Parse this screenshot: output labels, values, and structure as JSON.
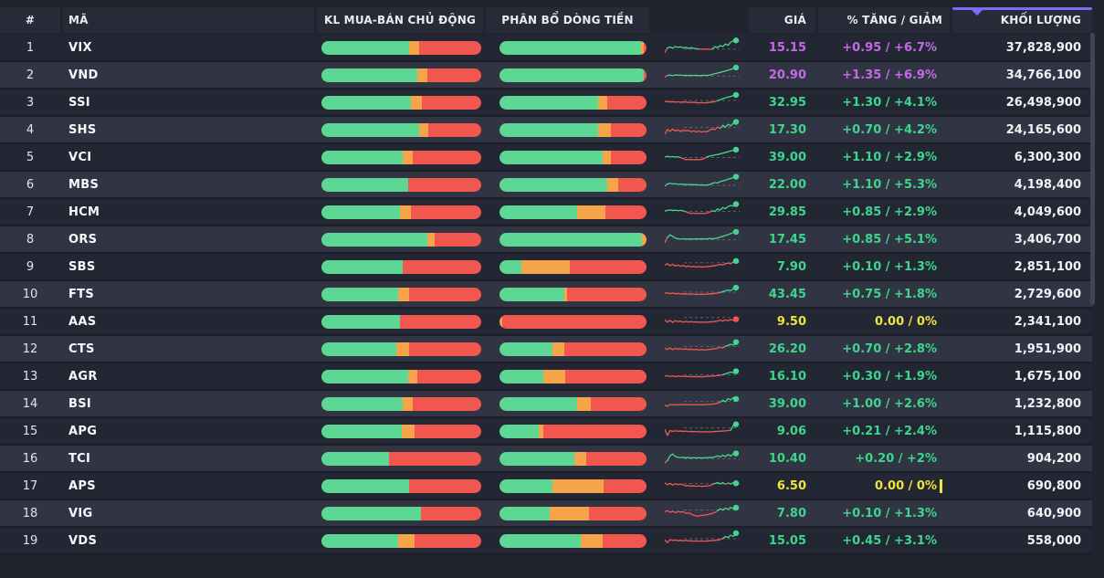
{
  "colors": {
    "bar_green": "#5dd794",
    "bar_orange": "#f5a44a",
    "bar_red": "#f1564f",
    "spark_green": "#45d58f",
    "spark_red": "#f1564f",
    "spark_baseline": "#687082",
    "accent_sort": "#7a6cf5",
    "state": {
      "ceiling": "#c46ae6",
      "up": "#3dd68c",
      "reference": "#efe33d"
    }
  },
  "header": {
    "number": "#",
    "ticker": "MÃ",
    "active_buy_sell": "KL MUA-BÁN CHỦ ĐỘNG",
    "money_flow": "PHÂN BỔ DÒNG TIỀN",
    "price": "GIÁ",
    "change": "% TĂNG / GIẢM",
    "volume": "KHỐI LƯỢNG",
    "sorted_by": "KHỐI LƯỢNG",
    "sort_direction": "desc"
  },
  "rows": [
    {
      "num": "1",
      "ticker": "VIX",
      "buy_sell": {
        "buy": 55,
        "neutral": 6,
        "sell": 39
      },
      "money_flow": {
        "in": 96,
        "neutral": 2,
        "out": 2
      },
      "price": "15.15",
      "change": "+0.95 / +6.7%",
      "state": "ceiling",
      "volume": "37,828,900",
      "caret": false,
      "spark": {
        "baseline": 0.62,
        "dot": "green",
        "values": [
          0.82,
          0.55,
          0.5,
          0.57,
          0.47,
          0.52,
          0.49,
          0.55,
          0.52,
          0.58,
          0.54,
          0.57,
          0.6,
          0.62,
          0.62,
          0.63,
          0.62,
          0.63,
          0.62,
          0.48,
          0.53,
          0.42,
          0.47,
          0.33,
          0.4,
          0.22,
          0.15,
          0.12
        ]
      }
    },
    {
      "num": "2",
      "ticker": "VND",
      "buy_sell": {
        "buy": 60,
        "neutral": 6,
        "sell": 34
      },
      "money_flow": {
        "in": 98,
        "neutral": 0,
        "out": 2
      },
      "price": "20.90",
      "change": "+1.35 / +6.9%",
      "state": "ceiling",
      "volume": "34,766,100",
      "caret": false,
      "spark": {
        "baseline": 0.6,
        "dot": "green",
        "values": [
          0.66,
          0.56,
          0.54,
          0.57,
          0.53,
          0.55,
          0.54,
          0.56,
          0.55,
          0.57,
          0.55,
          0.56,
          0.55,
          0.57,
          0.56,
          0.55,
          0.56,
          0.54,
          0.5,
          0.46,
          0.42,
          0.38,
          0.34,
          0.3,
          0.26,
          0.21,
          0.16,
          0.1
        ]
      }
    },
    {
      "num": "3",
      "ticker": "SSI",
      "buy_sell": {
        "buy": 56,
        "neutral": 7,
        "sell": 37
      },
      "money_flow": {
        "in": 67,
        "neutral": 6,
        "out": 27
      },
      "price": "32.95",
      "change": "+1.30 / +4.1%",
      "state": "up",
      "volume": "26,498,900",
      "caret": false,
      "spark": {
        "baseline": 0.42,
        "dot": "green",
        "values": [
          0.5,
          0.47,
          0.51,
          0.49,
          0.52,
          0.5,
          0.53,
          0.51,
          0.52,
          0.53,
          0.54,
          0.53,
          0.55,
          0.56,
          0.55,
          0.56,
          0.55,
          0.53,
          0.51,
          0.49,
          0.44,
          0.38,
          0.32,
          0.27,
          0.23,
          0.19,
          0.14,
          0.1
        ]
      }
    },
    {
      "num": "4",
      "ticker": "SHS",
      "buy_sell": {
        "buy": 61,
        "neutral": 6,
        "sell": 33
      },
      "money_flow": {
        "in": 67,
        "neutral": 9,
        "out": 24
      },
      "price": "17.30",
      "change": "+0.70 / +4.2%",
      "state": "up",
      "volume": "24,165,600",
      "caret": false,
      "spark": {
        "baseline": 0.4,
        "dot": "green",
        "values": [
          0.78,
          0.52,
          0.62,
          0.5,
          0.6,
          0.54,
          0.63,
          0.56,
          0.6,
          0.57,
          0.64,
          0.6,
          0.65,
          0.62,
          0.66,
          0.64,
          0.65,
          0.55,
          0.48,
          0.53,
          0.38,
          0.45,
          0.28,
          0.38,
          0.22,
          0.3,
          0.16,
          0.08
        ]
      }
    },
    {
      "num": "5",
      "ticker": "VCI",
      "buy_sell": {
        "buy": 51,
        "neutral": 6,
        "sell": 43
      },
      "money_flow": {
        "in": 70,
        "neutral": 6,
        "out": 24
      },
      "price": "39.00",
      "change": "+1.10 / +2.9%",
      "state": "up",
      "volume": "6,300,300",
      "caret": false,
      "spark": {
        "baseline": 0.55,
        "dot": "green",
        "values": [
          0.52,
          0.49,
          0.52,
          0.5,
          0.53,
          0.51,
          0.56,
          0.62,
          0.68,
          0.66,
          0.68,
          0.67,
          0.68,
          0.67,
          0.66,
          0.6,
          0.52,
          0.47,
          0.44,
          0.41,
          0.38,
          0.34,
          0.3,
          0.26,
          0.22,
          0.18,
          0.14,
          0.1
        ]
      }
    },
    {
      "num": "6",
      "ticker": "MBS",
      "buy_sell": {
        "buy": 54,
        "neutral": 0,
        "sell": 46
      },
      "money_flow": {
        "in": 73,
        "neutral": 8,
        "out": 19
      },
      "price": "22.00",
      "change": "+1.10 / +5.3%",
      "state": "up",
      "volume": "4,198,400",
      "caret": false,
      "spark": {
        "baseline": 0.58,
        "dot": "green",
        "values": [
          0.62,
          0.5,
          0.46,
          0.5,
          0.48,
          0.52,
          0.5,
          0.53,
          0.52,
          0.54,
          0.53,
          0.55,
          0.54,
          0.56,
          0.55,
          0.57,
          0.56,
          0.54,
          0.46,
          0.42,
          0.44,
          0.36,
          0.32,
          0.28,
          0.23,
          0.18,
          0.13,
          0.08
        ]
      }
    },
    {
      "num": "7",
      "ticker": "HCM",
      "buy_sell": {
        "buy": 49,
        "neutral": 7,
        "sell": 44
      },
      "money_flow": {
        "in": 53,
        "neutral": 19,
        "out": 28
      },
      "price": "29.85",
      "change": "+0.85 / +2.9%",
      "state": "up",
      "volume": "4,049,600",
      "caret": false,
      "spark": {
        "baseline": 0.5,
        "dot": "green",
        "values": [
          0.48,
          0.44,
          0.42,
          0.45,
          0.43,
          0.46,
          0.44,
          0.47,
          0.52,
          0.58,
          0.62,
          0.6,
          0.62,
          0.61,
          0.62,
          0.61,
          0.6,
          0.54,
          0.46,
          0.5,
          0.36,
          0.42,
          0.28,
          0.34,
          0.22,
          0.16,
          0.2,
          0.08
        ]
      }
    },
    {
      "num": "8",
      "ticker": "ORS",
      "buy_sell": {
        "buy": 66,
        "neutral": 5,
        "sell": 29
      },
      "money_flow": {
        "in": 97,
        "neutral": 3,
        "out": 0
      },
      "price": "17.45",
      "change": "+0.85 / +5.1%",
      "state": "up",
      "volume": "3,406,700",
      "caret": false,
      "spark": {
        "baseline": 0.55,
        "dot": "green",
        "values": [
          0.72,
          0.42,
          0.28,
          0.36,
          0.46,
          0.5,
          0.52,
          0.5,
          0.52,
          0.51,
          0.52,
          0.51,
          0.5,
          0.51,
          0.5,
          0.51,
          0.5,
          0.49,
          0.5,
          0.48,
          0.45,
          0.41,
          0.36,
          0.31,
          0.26,
          0.2,
          0.14,
          0.1
        ]
      }
    },
    {
      "num": "9",
      "ticker": "SBS",
      "buy_sell": {
        "buy": 51,
        "neutral": 0,
        "sell": 49
      },
      "money_flow": {
        "in": 15,
        "neutral": 33,
        "out": 52
      },
      "price": "7.90",
      "change": "+0.10 / +1.3%",
      "state": "up",
      "volume": "2,851,100",
      "caret": false,
      "spark": {
        "baseline": 0.3,
        "dot": "green",
        "values": [
          0.44,
          0.36,
          0.47,
          0.39,
          0.49,
          0.43,
          0.51,
          0.46,
          0.53,
          0.49,
          0.54,
          0.51,
          0.55,
          0.53,
          0.55,
          0.54,
          0.53,
          0.51,
          0.49,
          0.47,
          0.44,
          0.4,
          0.43,
          0.36,
          0.32,
          0.36,
          0.26,
          0.2
        ]
      }
    },
    {
      "num": "10",
      "ticker": "FTS",
      "buy_sell": {
        "buy": 48,
        "neutral": 7,
        "sell": 45
      },
      "money_flow": {
        "in": 44,
        "neutral": 2,
        "out": 54
      },
      "price": "43.45",
      "change": "+0.75 / +1.8%",
      "state": "up",
      "volume": "2,729,600",
      "caret": false,
      "spark": {
        "baseline": 0.42,
        "dot": "green",
        "values": [
          0.48,
          0.46,
          0.5,
          0.47,
          0.51,
          0.49,
          0.52,
          0.51,
          0.53,
          0.52,
          0.54,
          0.53,
          0.55,
          0.54,
          0.55,
          0.54,
          0.53,
          0.52,
          0.51,
          0.49,
          0.47,
          0.44,
          0.39,
          0.34,
          0.3,
          0.33,
          0.22,
          0.16
        ]
      }
    },
    {
      "num": "11",
      "ticker": "AAS",
      "buy_sell": {
        "buy": 49,
        "neutral": 0,
        "sell": 51
      },
      "money_flow": {
        "in": 0,
        "neutral": 2,
        "out": 98
      },
      "price": "9.50",
      "change": "0.00 / 0%",
      "state": "reference",
      "volume": "2,341,100",
      "caret": false,
      "spark": {
        "baseline": 0.3,
        "dot": "red",
        "values": [
          0.44,
          0.56,
          0.47,
          0.58,
          0.49,
          0.54,
          0.51,
          0.57,
          0.53,
          0.56,
          0.54,
          0.57,
          0.55,
          0.58,
          0.56,
          0.58,
          0.57,
          0.56,
          0.55,
          0.53,
          0.5,
          0.46,
          0.5,
          0.44,
          0.48,
          0.42,
          0.46,
          0.4
        ]
      }
    },
    {
      "num": "12",
      "ticker": "CTS",
      "buy_sell": {
        "buy": 47,
        "neutral": 8,
        "sell": 45
      },
      "money_flow": {
        "in": 36,
        "neutral": 8,
        "out": 56
      },
      "price": "26.20",
      "change": "+0.70 / +2.8%",
      "state": "up",
      "volume": "1,951,900",
      "caret": false,
      "spark": {
        "baseline": 0.38,
        "dot": "green",
        "values": [
          0.5,
          0.56,
          0.48,
          0.57,
          0.5,
          0.55,
          0.52,
          0.56,
          0.53,
          0.57,
          0.55,
          0.58,
          0.56,
          0.59,
          0.57,
          0.6,
          0.58,
          0.56,
          0.54,
          0.52,
          0.49,
          0.44,
          0.48,
          0.38,
          0.32,
          0.26,
          0.31,
          0.14
        ]
      }
    },
    {
      "num": "13",
      "ticker": "AGR",
      "buy_sell": {
        "buy": 54,
        "neutral": 6,
        "sell": 40
      },
      "money_flow": {
        "in": 30,
        "neutral": 15,
        "out": 55
      },
      "price": "16.10",
      "change": "+0.30 / +1.9%",
      "state": "up",
      "volume": "1,675,100",
      "caret": false,
      "spark": {
        "baseline": 0.45,
        "dot": "green",
        "values": [
          0.52,
          0.5,
          0.54,
          0.51,
          0.55,
          0.52,
          0.54,
          0.53,
          0.55,
          0.54,
          0.56,
          0.55,
          0.56,
          0.55,
          0.56,
          0.55,
          0.54,
          0.53,
          0.52,
          0.51,
          0.49,
          0.47,
          0.44,
          0.39,
          0.34,
          0.29,
          0.33,
          0.24
        ]
      }
    },
    {
      "num": "14",
      "ticker": "BSI",
      "buy_sell": {
        "buy": 51,
        "neutral": 6,
        "sell": 43
      },
      "money_flow": {
        "in": 53,
        "neutral": 9,
        "out": 38
      },
      "price": "39.00",
      "change": "+1.00 / +2.6%",
      "state": "up",
      "volume": "1,232,800",
      "caret": false,
      "spark": {
        "baseline": 0.4,
        "dot": "green",
        "values": [
          0.62,
          0.68,
          0.58,
          0.61,
          0.58,
          0.6,
          0.58,
          0.59,
          0.58,
          0.6,
          0.59,
          0.6,
          0.59,
          0.6,
          0.59,
          0.6,
          0.58,
          0.57,
          0.56,
          0.54,
          0.5,
          0.44,
          0.34,
          0.42,
          0.24,
          0.3,
          0.18,
          0.26
        ]
      }
    },
    {
      "num": "15",
      "ticker": "APG",
      "buy_sell": {
        "buy": 50,
        "neutral": 8,
        "sell": 42
      },
      "money_flow": {
        "in": 27,
        "neutral": 3,
        "out": 70
      },
      "price": "9.06",
      "change": "+0.21 / +2.4%",
      "state": "up",
      "volume": "1,115,800",
      "caret": false,
      "spark": {
        "baseline": 0.35,
        "dot": "green",
        "values": [
          0.44,
          0.78,
          0.5,
          0.55,
          0.52,
          0.54,
          0.53,
          0.55,
          0.54,
          0.56,
          0.55,
          0.57,
          0.56,
          0.58,
          0.57,
          0.58,
          0.57,
          0.58,
          0.57,
          0.56,
          0.55,
          0.54,
          0.53,
          0.52,
          0.5,
          0.48,
          0.2,
          0.14
        ]
      }
    },
    {
      "num": "16",
      "ticker": "TCI",
      "buy_sell": {
        "buy": 42,
        "neutral": 0,
        "sell": 58
      },
      "money_flow": {
        "in": 51,
        "neutral": 8,
        "out": 41
      },
      "price": "10.40",
      "change": "+0.20 / +2%",
      "state": "up",
      "volume": "904,200",
      "caret": false,
      "spark": {
        "baseline": 0.55,
        "dot": "green",
        "values": [
          0.78,
          0.66,
          0.38,
          0.28,
          0.42,
          0.46,
          0.48,
          0.47,
          0.49,
          0.48,
          0.5,
          0.49,
          0.5,
          0.49,
          0.5,
          0.49,
          0.48,
          0.47,
          0.48,
          0.44,
          0.38,
          0.44,
          0.34,
          0.42,
          0.3,
          0.4,
          0.27,
          0.24
        ]
      }
    },
    {
      "num": "17",
      "ticker": "APS",
      "buy_sell": {
        "buy": 55,
        "neutral": 0,
        "sell": 45
      },
      "money_flow": {
        "in": 36,
        "neutral": 35,
        "out": 29
      },
      "price": "6.50",
      "change": "0.00 / 0%",
      "state": "reference",
      "volume": "690,800",
      "caret": true,
      "spark": {
        "baseline": 0.4,
        "dot": "green",
        "values": [
          0.36,
          0.46,
          0.39,
          0.48,
          0.41,
          0.46,
          0.43,
          0.47,
          0.54,
          0.51,
          0.55,
          0.53,
          0.56,
          0.54,
          0.56,
          0.55,
          0.54,
          0.52,
          0.45,
          0.4,
          0.34,
          0.42,
          0.35,
          0.44,
          0.37,
          0.42,
          0.35,
          0.38
        ]
      }
    },
    {
      "num": "18",
      "ticker": "VIG",
      "buy_sell": {
        "buy": 62,
        "neutral": 0,
        "sell": 38
      },
      "money_flow": {
        "in": 34,
        "neutral": 27,
        "out": 39
      },
      "price": "7.80",
      "change": "+0.10 / +1.3%",
      "state": "up",
      "volume": "640,900",
      "caret": false,
      "spark": {
        "baseline": 0.35,
        "dot": "green",
        "values": [
          0.44,
          0.38,
          0.48,
          0.41,
          0.5,
          0.42,
          0.47,
          0.44,
          0.54,
          0.5,
          0.58,
          0.64,
          0.7,
          0.68,
          0.66,
          0.64,
          0.62,
          0.58,
          0.54,
          0.48,
          0.38,
          0.28,
          0.34,
          0.24,
          0.3,
          0.2,
          0.27,
          0.21
        ]
      }
    },
    {
      "num": "19",
      "ticker": "VDS",
      "buy_sell": {
        "buy": 48,
        "neutral": 10,
        "sell": 42
      },
      "money_flow": {
        "in": 55,
        "neutral": 15,
        "out": 30
      },
      "price": "15.05",
      "change": "+0.45 / +3.1%",
      "state": "up",
      "volume": "558,000",
      "caret": false,
      "spark": {
        "baseline": 0.42,
        "dot": "green",
        "values": [
          0.5,
          0.64,
          0.47,
          0.52,
          0.49,
          0.53,
          0.51,
          0.54,
          0.52,
          0.55,
          0.54,
          0.56,
          0.55,
          0.56,
          0.55,
          0.56,
          0.55,
          0.54,
          0.53,
          0.52,
          0.5,
          0.47,
          0.4,
          0.3,
          0.35,
          0.22,
          0.28,
          0.1
        ]
      }
    }
  ]
}
